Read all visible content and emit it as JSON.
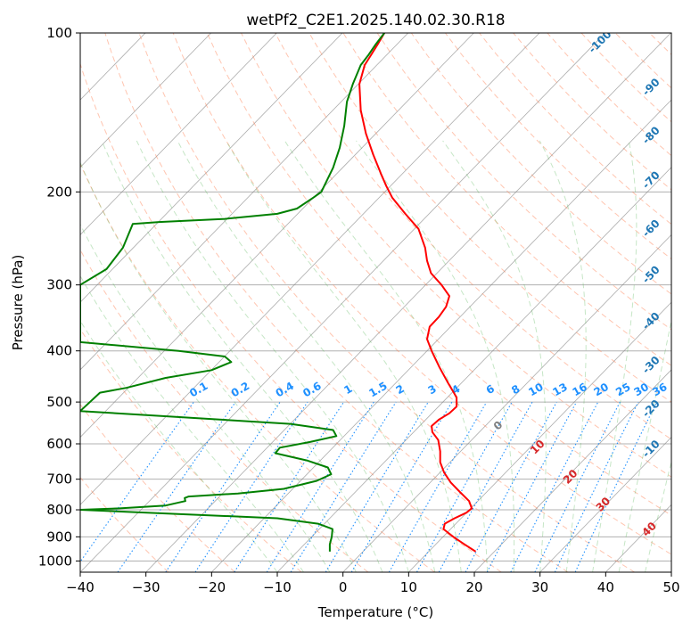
{
  "chart_data": {
    "type": "line",
    "title": "wetPf2_C2E1.2025.140.02.30.R18",
    "xlabel": "Temperature (°C)",
    "ylabel": "Pressure (hPa)",
    "xlim": [
      -40,
      50
    ],
    "ylim": [
      1050,
      100
    ],
    "y_scale": "log",
    "grid": true,
    "x_ticks": [
      -40,
      -30,
      -20,
      -10,
      0,
      10,
      20,
      30,
      40,
      50
    ],
    "y_ticks": [
      100,
      200,
      300,
      400,
      500,
      600,
      700,
      800,
      900,
      1000
    ],
    "series": [
      {
        "color": "#ff0000",
        "points": [
          [
            20.2,
            960
          ],
          [
            18.5,
            930
          ],
          [
            16.8,
            900
          ],
          [
            15.3,
            870
          ],
          [
            15.5,
            850
          ],
          [
            17,
            830
          ],
          [
            18.8,
            810
          ],
          [
            19.6,
            795
          ],
          [
            19.2,
            770
          ],
          [
            17.8,
            740
          ],
          [
            16.4,
            710
          ],
          [
            15.4,
            680
          ],
          [
            14.8,
            650
          ],
          [
            14.8,
            620
          ],
          [
            14.5,
            590
          ],
          [
            13.6,
            570
          ],
          [
            13.5,
            555
          ],
          [
            14.6,
            540
          ],
          [
            16.2,
            525
          ],
          [
            17.3,
            510
          ],
          [
            17.3,
            490
          ],
          [
            16,
            460
          ],
          [
            14.7,
            430
          ],
          [
            13.5,
            400
          ],
          [
            12.8,
            380
          ],
          [
            13.2,
            360
          ],
          [
            14.6,
            345
          ],
          [
            15.7,
            330
          ],
          [
            16.2,
            315
          ],
          [
            15,
            300
          ],
          [
            13.4,
            285
          ],
          [
            12.8,
            270
          ],
          [
            12.5,
            255
          ],
          [
            11.5,
            235
          ],
          [
            9.5,
            220
          ],
          [
            7.5,
            205
          ],
          [
            6.6,
            195
          ],
          [
            5.8,
            185
          ],
          [
            4.6,
            170
          ],
          [
            3.5,
            155
          ],
          [
            2.7,
            140
          ],
          [
            2.5,
            125
          ],
          [
            3.3,
            115
          ],
          [
            4.3,
            110
          ],
          [
            5.3,
            105
          ],
          [
            6.3,
            100
          ]
        ]
      },
      {
        "color": "#008000",
        "points": [
          [
            -2,
            960
          ],
          [
            -2,
            930
          ],
          [
            -1.7,
            900
          ],
          [
            -1.6,
            870
          ],
          [
            -3.8,
            850
          ],
          [
            -10,
            830
          ],
          [
            -40,
            800
          ],
          [
            -34,
            795
          ],
          [
            -27,
            785
          ],
          [
            -24,
            770
          ],
          [
            -24.1,
            760
          ],
          [
            -23.5,
            755
          ],
          [
            -16,
            745
          ],
          [
            -9,
            730
          ],
          [
            -4,
            705
          ],
          [
            -1.8,
            685
          ],
          [
            -2.3,
            665
          ],
          [
            -5.5,
            645
          ],
          [
            -10.3,
            625
          ],
          [
            -9.6,
            610
          ],
          [
            -5,
            595
          ],
          [
            -1,
            580
          ],
          [
            -1.5,
            565
          ],
          [
            -8,
            550
          ],
          [
            -40,
            520
          ],
          [
            -37,
            480
          ],
          [
            -33,
            470
          ],
          [
            -27,
            450
          ],
          [
            -20,
            435
          ],
          [
            -17,
            420
          ],
          [
            -18,
            410
          ],
          [
            -25,
            400
          ],
          [
            -40,
            385
          ],
          [
            -40,
            300
          ],
          [
            -36,
            280
          ],
          [
            -33.5,
            255
          ],
          [
            -32,
            230
          ],
          [
            -28,
            228
          ],
          [
            -18,
            225
          ],
          [
            -10,
            220
          ],
          [
            -7,
            215
          ],
          [
            -4.5,
            205
          ],
          [
            -3.3,
            200
          ],
          [
            -1.5,
            180
          ],
          [
            -0.5,
            165
          ],
          [
            0.2,
            150
          ],
          [
            0.6,
            135
          ],
          [
            1.5,
            125
          ],
          [
            2.7,
            115
          ],
          [
            3.9,
            110
          ],
          [
            5,
            105
          ],
          [
            6.3,
            100
          ]
        ]
      }
    ],
    "annotations": {
      "dry_adiabat_labels": [
        "-100",
        "-90",
        "-80",
        "-70",
        "-60",
        "-50",
        "-40",
        "-30",
        "-20",
        "-10"
      ],
      "mixing_ratio_labels": [
        "0.1",
        "0.2",
        "0.4",
        "0.6",
        "1",
        "1.5",
        "2",
        "3",
        "4",
        "6",
        "8",
        "10",
        "13",
        "16",
        "20",
        "25",
        "30",
        "36"
      ],
      "moist_adiabat_labels": [
        "0",
        "10",
        "20",
        "30",
        "40"
      ]
    },
    "colors": {
      "grid": "#b0b0b0",
      "isotherm": "#808080",
      "dry_adiabat": "#ff7f50",
      "moist_adiabat": "#5cb85c",
      "mixing_ratio": "#1e90ff",
      "temperature": "#ff0000",
      "dewpoint": "#008000",
      "dry_label": "#1f77b4",
      "moist_label": "#d62728"
    }
  }
}
